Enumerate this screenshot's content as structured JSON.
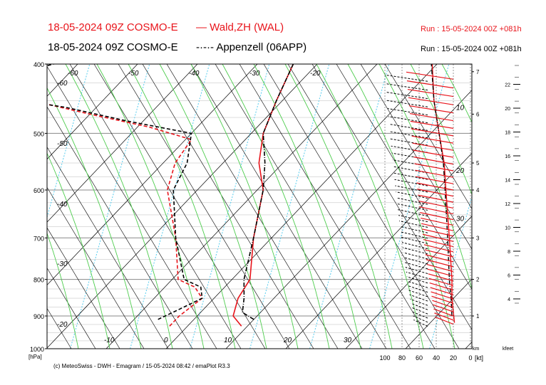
{
  "header": {
    "line1_title": "18-05-2024 09Z COSMO-E",
    "line1_legend": "Wald,ZH (WAL)",
    "line1_run": "Run : 15-05-2024 00Z +081h",
    "line2_title": "18-05-2024 09Z COSMO-E",
    "line2_legend": "Appenzell (06APP)",
    "line2_run": "Run : 15-05-2024 00Z +081h"
  },
  "footer": "(c) MeteoSwiss - DWH - Emagram / 15-05-2024  08:42 / emaPlot R3.3",
  "colors": {
    "red": "#e8141b",
    "black": "#000000",
    "dry_adiabat": "#000000",
    "moist_adiabat": "#4dcc4d",
    "mixing_ratio": "#55ccee"
  },
  "chart_data": {
    "type": "line",
    "subtype": "skew-T emagram with wind profile",
    "y_axis": {
      "label": "[hPa]",
      "scale": "log",
      "range": [
        1000,
        400
      ],
      "ticks": [
        400,
        500,
        600,
        700,
        800,
        900,
        1000
      ]
    },
    "isotherm_labels": [
      -60,
      -50,
      -40,
      -30,
      -20,
      -10,
      0,
      10,
      20,
      30
    ],
    "isotherm_labels_top": [
      "-60",
      "-50",
      "-40",
      "-30",
      "-20"
    ],
    "isotherm_labels_left": [
      "-60",
      "-50",
      "-40",
      "-30",
      "-20"
    ],
    "isotherm_labels_bottom": [
      "-10",
      "0",
      "10",
      "20",
      "30"
    ],
    "km_axis": {
      "label": "km",
      "ticks": [
        1,
        2,
        3,
        4,
        5,
        6,
        7
      ]
    },
    "kfeet_axis": {
      "label": "kfeet",
      "ticks": [
        4,
        6,
        8,
        10,
        12,
        14,
        16,
        18,
        20,
        22
      ]
    },
    "wind_speed_axis": {
      "unit": "[kt]",
      "ticks": [
        100,
        80,
        60,
        40,
        20,
        0
      ]
    },
    "wind_profile_labels": [
      "10",
      "20",
      "30"
    ],
    "series": [
      {
        "name": "Wald,ZH (WAL)",
        "kind": "temperature",
        "color": "#e8141b",
        "style": "solid",
        "points": [
          [
            930,
            9
          ],
          [
            900,
            6
          ],
          [
            850,
            4
          ],
          [
            800,
            3
          ],
          [
            700,
            -3
          ],
          [
            600,
            -9
          ],
          [
            550,
            -14
          ],
          [
            500,
            -18
          ],
          [
            450,
            -21
          ],
          [
            400,
            -24
          ]
        ]
      },
      {
        "name": "Wald,ZH (WAL)",
        "kind": "dewpoint",
        "color": "#e8141b",
        "style": "dashed",
        "points": [
          [
            930,
            -3
          ],
          [
            900,
            -3
          ],
          [
            850,
            -2
          ],
          [
            820,
            -5
          ],
          [
            800,
            -9
          ],
          [
            700,
            -16
          ],
          [
            600,
            -25
          ],
          [
            550,
            -28
          ],
          [
            510,
            -29
          ],
          [
            490,
            -38
          ],
          [
            470,
            -50
          ],
          [
            440,
            -68
          ],
          [
            430,
            -72
          ],
          [
            400,
            -66
          ]
        ]
      },
      {
        "name": "Appenzell (06APP)",
        "kind": "temperature",
        "color": "#000000",
        "style": "dashdot",
        "points": [
          [
            910,
            10
          ],
          [
            890,
            7
          ],
          [
            850,
            5
          ],
          [
            800,
            2
          ],
          [
            700,
            -3
          ],
          [
            600,
            -9
          ],
          [
            550,
            -13
          ],
          [
            500,
            -18
          ],
          [
            450,
            -21
          ],
          [
            400,
            -24
          ]
        ]
      },
      {
        "name": "Appenzell (06APP)",
        "kind": "dewpoint",
        "color": "#000000",
        "style": "dashed",
        "points": [
          [
            910,
            -6
          ],
          [
            880,
            -4
          ],
          [
            850,
            -2
          ],
          [
            820,
            -4
          ],
          [
            800,
            -8
          ],
          [
            700,
            -16
          ],
          [
            600,
            -24
          ],
          [
            550,
            -26
          ],
          [
            500,
            -30
          ],
          [
            480,
            -43
          ],
          [
            460,
            -55
          ],
          [
            440,
            -72
          ],
          [
            420,
            -72
          ],
          [
            400,
            -64
          ]
        ]
      }
    ],
    "wind_speed_profiles": [
      {
        "name": "Wald,ZH (WAL)",
        "color": "#e8141b",
        "style": "solid",
        "points": [
          [
            920,
            2
          ],
          [
            850,
            5
          ],
          [
            800,
            5
          ],
          [
            700,
            8
          ],
          [
            600,
            12
          ],
          [
            550,
            14
          ],
          [
            500,
            20
          ],
          [
            450,
            26
          ],
          [
            400,
            28
          ]
        ]
      },
      {
        "name": "Appenzell (06APP)",
        "color": "#000000",
        "style": "dashdot",
        "points": [
          [
            900,
            5
          ],
          [
            850,
            6
          ],
          [
            800,
            8
          ],
          [
            700,
            10
          ],
          [
            600,
            13
          ],
          [
            550,
            15
          ],
          [
            500,
            20
          ],
          [
            450,
            26
          ],
          [
            400,
            29
          ]
        ]
      }
    ],
    "grid": true
  }
}
